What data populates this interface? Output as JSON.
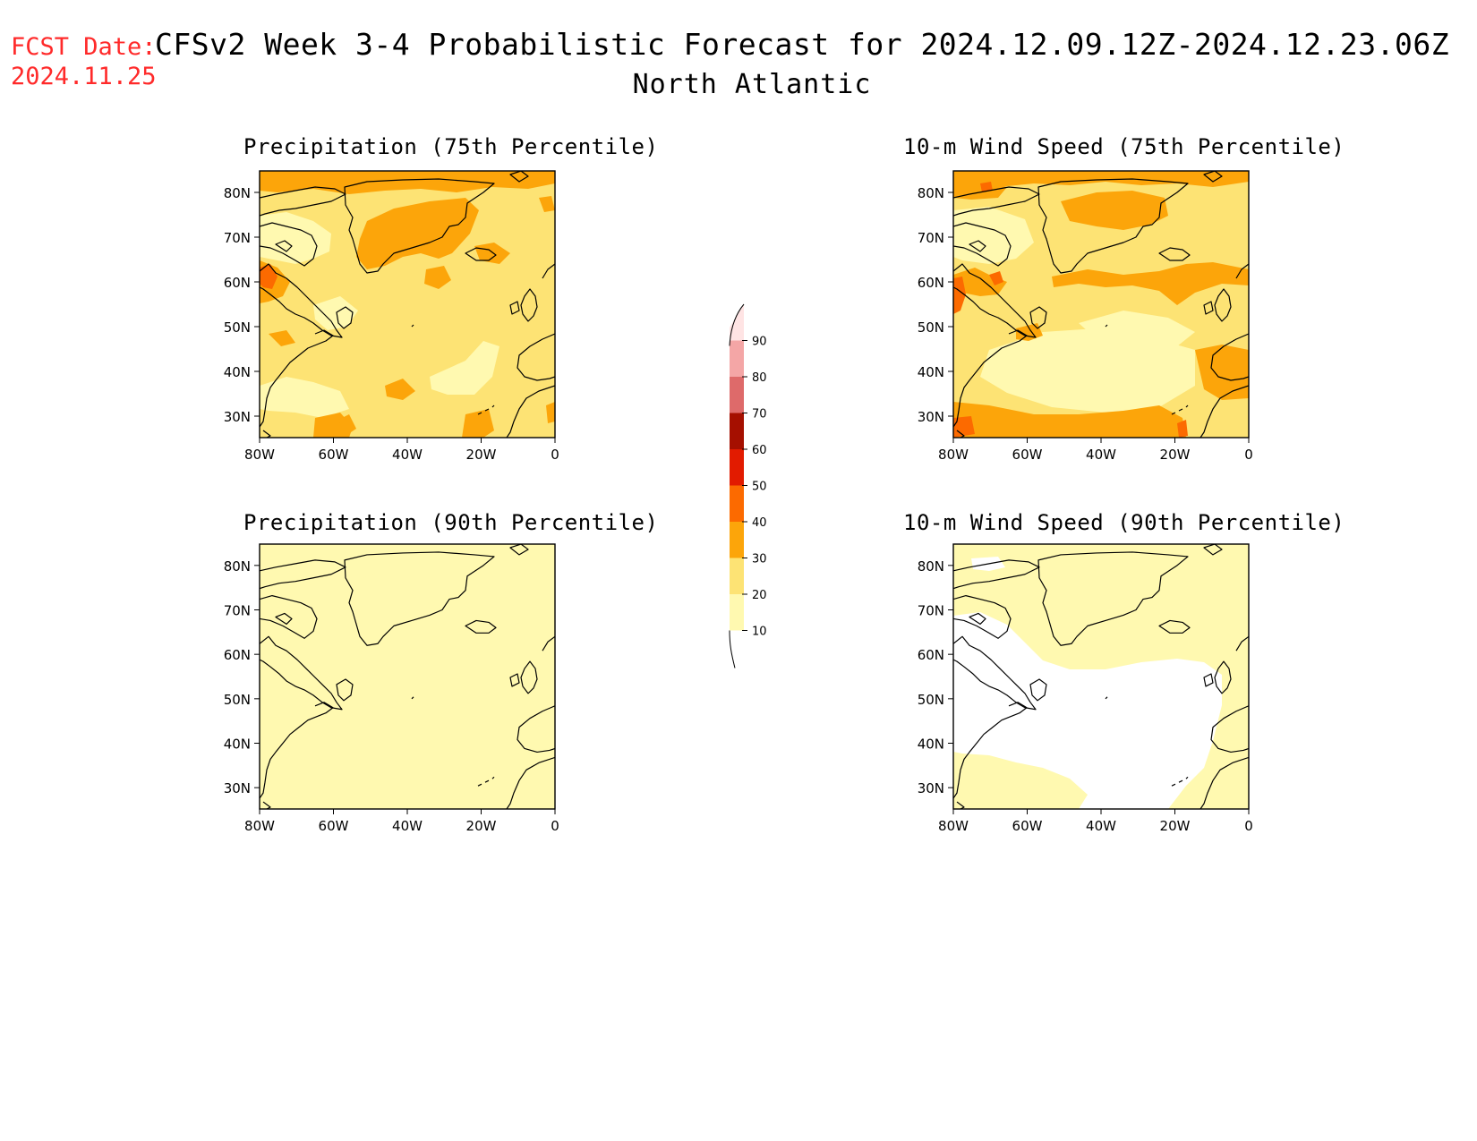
{
  "header": {
    "fcst_label": "FCST Date:",
    "fcst_date": "2024.11.25",
    "title": "CFSv2 Week 3-4 Probabilistic Forecast for 2024.12.09.12Z-2024.12.23.06Z",
    "region": "North Atlantic"
  },
  "panels": [
    {
      "id": "precip75",
      "title": "Precipitation (75th Percentile)"
    },
    {
      "id": "wind75",
      "title": "10-m Wind Speed (75th Percentile)"
    },
    {
      "id": "precip90",
      "title": "Precipitation (90th Percentile)"
    },
    {
      "id": "wind90",
      "title": "10-m Wind Speed (90th Percentile)"
    }
  ],
  "axes": {
    "lon_labels": [
      "80W",
      "60W",
      "40W",
      "20W",
      "0"
    ],
    "lat_labels": [
      "80N",
      "70N",
      "60N",
      "50N",
      "40N",
      "30N"
    ]
  },
  "colorbar": {
    "levels": [
      "10",
      "20",
      "30",
      "40",
      "50",
      "60",
      "70",
      "80",
      "90"
    ],
    "colors": [
      "#fff9b0",
      "#fde374",
      "#fca50a",
      "#fc6a00",
      "#e21b00",
      "#a50f00",
      "#de6a6a",
      "#f4a6a6",
      "#ffe4e4"
    ]
  }
}
